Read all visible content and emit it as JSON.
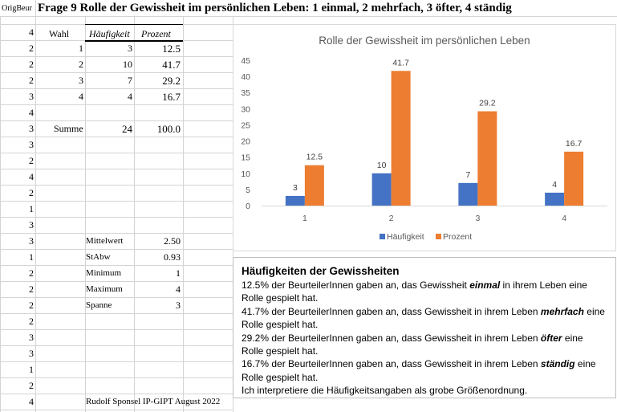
{
  "header": {
    "cell_a1": "OrigBeur",
    "title": "Frage 9 Rolle der Gewissheit im persönlichen Leben: 1 einmal,  2 mehrfach, 3 öfter, 4 ständig"
  },
  "col_a_values": [
    "4",
    "2",
    "2",
    "2",
    "3",
    "4",
    "3",
    "3",
    "2",
    "4",
    "2",
    "1",
    "3",
    "3",
    "1",
    "2",
    "2",
    "2",
    "2",
    "3",
    "3",
    "1",
    "2",
    "4"
  ],
  "table": {
    "headers": {
      "wahl": "Wahl",
      "haeufigkeit": "Häufigkeit",
      "prozent": "Prozent"
    },
    "rows": [
      {
        "wahl": "1",
        "haeufigkeit": "3",
        "prozent": "12.5"
      },
      {
        "wahl": "2",
        "haeufigkeit": "10",
        "prozent": "41.7"
      },
      {
        "wahl": "3",
        "haeufigkeit": "7",
        "prozent": "29.2"
      },
      {
        "wahl": "4",
        "haeufigkeit": "4",
        "prozent": "16.7"
      }
    ],
    "summe": {
      "label": "Summe",
      "haeufigkeit": "24",
      "prozent": "100.0"
    }
  },
  "stats": [
    {
      "label": "Mittelwert",
      "value": "2.50"
    },
    {
      "label": "StAbw",
      "value": "0.93"
    },
    {
      "label": "Minimum",
      "value": "1"
    },
    {
      "label": "Maximum",
      "value": "4"
    },
    {
      "label": "Spanne",
      "value": "3"
    }
  ],
  "footer": "Rudolf Sponsel IP-GIPT August 2022",
  "chart_data": {
    "type": "bar",
    "title": "Rolle der Gewissheit im persönlichen Leben",
    "categories": [
      "1",
      "2",
      "3",
      "4"
    ],
    "series": [
      {
        "name": "Häufigkeit",
        "values": [
          3,
          10,
          7,
          4
        ],
        "color": "#4472c4"
      },
      {
        "name": "Prozent",
        "values": [
          12.5,
          41.7,
          29.2,
          16.7
        ],
        "color": "#ed7d31"
      }
    ],
    "data_labels": [
      [
        "3",
        "10",
        "7",
        "4"
      ],
      [
        "12.5",
        "41.7",
        "29.2",
        "16.7"
      ]
    ],
    "ylim": [
      0,
      45
    ],
    "yticks": [
      0,
      5,
      10,
      15,
      20,
      25,
      30,
      35,
      40,
      45
    ],
    "grid": false,
    "legend_position": "bottom"
  },
  "textbox": {
    "heading": "Häufigkeiten der Gewissheiten",
    "lines": [
      {
        "pre": "12.5% der BeurteilerInnen gaben an, das Gewissheit ",
        "em": "einmal",
        "post": " in ihrem Leben eine Rolle gespielt hat."
      },
      {
        "pre": "41.7% der BeurteilerInnen gaben an, dass Gewissheit in ihrem Leben ",
        "em": "mehrfach",
        "post": " eine Rolle gespielt hat."
      },
      {
        "pre": "29.2% der BeurteilerInnen gaben an, dass Gewissheit in ihrem Leben ",
        "em": "öfter",
        "post": " eine Rolle gespielt hat."
      },
      {
        "pre": "16.7% der BeurteilerInnen gaben an, dass Gewissheit in ihrem Leben ",
        "em": "ständig",
        "post": " eine Rolle gespielt hat."
      },
      {
        "pre": "Ich interpretiere die Häufigkeitsangaben als grobe Größenordnung.",
        "em": "",
        "post": ""
      }
    ]
  }
}
